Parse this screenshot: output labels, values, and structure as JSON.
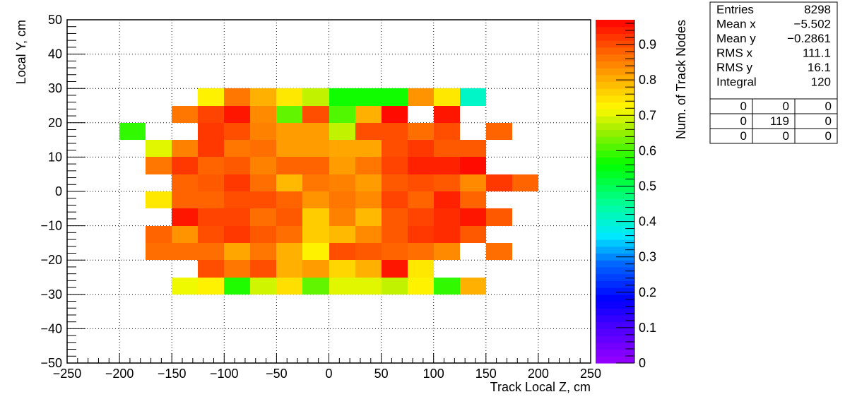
{
  "chart_data": {
    "type": "heatmap",
    "xlabel": "Track Local Z, cm",
    "ylabel": "Local Y, cm",
    "zlabel": "Num. of Track Nodes",
    "xlim": [
      -250,
      250
    ],
    "ylim": [
      -50,
      50
    ],
    "zlim": [
      0,
      0.97
    ],
    "x_ticks": [
      "−250",
      "−200",
      "−150",
      "−100",
      "−50",
      "0",
      "50",
      "100",
      "150",
      "200",
      "250"
    ],
    "y_ticks": [
      "−50",
      "−40",
      "−30",
      "−20",
      "−10",
      "0",
      "10",
      "20",
      "30",
      "40",
      "50"
    ],
    "z_ticks": [
      "0",
      "0.1",
      "0.2",
      "0.3",
      "0.4",
      "0.5",
      "0.6",
      "0.7",
      "0.8",
      "0.9"
    ],
    "grid": true,
    "bin_width_x": 25,
    "bin_height_y": 5,
    "x_bin_starts": [
      -200,
      -175,
      -150,
      -125,
      -100,
      -75,
      -50,
      -25,
      0,
      25,
      50,
      75,
      100,
      125,
      150,
      175
    ],
    "y_bin_tops": [
      30,
      25,
      20,
      15,
      10,
      5,
      0,
      -5,
      -10,
      -15,
      -20,
      -25
    ],
    "z": [
      [
        null,
        null,
        null,
        0.73,
        0.86,
        0.8,
        0.74,
        0.68,
        0.57,
        0.57,
        0.57,
        0.83,
        0.74,
        0.41,
        null,
        null
      ],
      [
        null,
        null,
        0.86,
        0.91,
        0.95,
        0.84,
        0.62,
        0.9,
        0.61,
        0.8,
        0.96,
        null,
        0.95,
        null,
        null,
        null
      ],
      [
        0.59,
        null,
        null,
        0.92,
        0.9,
        0.85,
        0.82,
        0.82,
        0.68,
        0.9,
        0.9,
        0.87,
        0.9,
        null,
        0.88,
        null
      ],
      [
        null,
        0.7,
        0.85,
        0.92,
        0.86,
        0.87,
        0.82,
        0.82,
        0.81,
        0.81,
        0.9,
        0.92,
        0.89,
        0.89,
        null,
        null
      ],
      [
        null,
        0.86,
        0.92,
        0.88,
        0.89,
        0.85,
        0.88,
        0.88,
        0.82,
        0.86,
        0.91,
        0.94,
        0.94,
        0.96,
        null,
        null
      ],
      [
        null,
        null,
        0.88,
        0.89,
        0.92,
        0.87,
        0.79,
        0.86,
        0.85,
        0.82,
        0.89,
        0.9,
        0.89,
        0.84,
        0.92,
        0.88
      ],
      [
        null,
        0.74,
        0.88,
        0.88,
        0.9,
        0.9,
        0.88,
        0.83,
        0.86,
        0.84,
        0.91,
        0.88,
        0.94,
        0.88,
        null,
        null
      ],
      [
        null,
        null,
        0.95,
        0.91,
        0.91,
        0.87,
        0.89,
        0.77,
        0.85,
        0.79,
        0.89,
        0.91,
        0.93,
        0.95,
        0.89,
        null
      ],
      [
        null,
        0.88,
        0.83,
        0.9,
        0.92,
        0.89,
        0.87,
        0.77,
        0.79,
        0.84,
        0.89,
        0.92,
        0.93,
        0.89,
        null,
        null
      ],
      [
        null,
        0.87,
        0.87,
        0.87,
        0.81,
        0.86,
        0.8,
        0.73,
        0.9,
        0.89,
        0.88,
        0.87,
        0.84,
        null,
        0.87,
        null
      ],
      [
        null,
        null,
        null,
        0.9,
        0.86,
        0.9,
        0.8,
        0.82,
        0.76,
        0.8,
        0.95,
        0.74,
        null,
        null,
        null,
        null
      ],
      [
        null,
        null,
        0.71,
        0.73,
        0.58,
        0.69,
        0.75,
        0.62,
        0.7,
        0.7,
        0.68,
        0.73,
        0.59,
        0.8,
        null,
        null
      ]
    ],
    "colorscale": [
      [
        0.0,
        "#9900ff"
      ],
      [
        0.1,
        "#4b00ff"
      ],
      [
        0.18,
        "#0000ff"
      ],
      [
        0.28,
        "#0066ff"
      ],
      [
        0.36,
        "#00eaff"
      ],
      [
        0.45,
        "#00ff99"
      ],
      [
        0.56,
        "#00ff00"
      ],
      [
        0.66,
        "#a2ee00"
      ],
      [
        0.72,
        "#fffb00"
      ],
      [
        0.8,
        "#ffb000"
      ],
      [
        0.88,
        "#ff6400"
      ],
      [
        0.97,
        "#ff0000"
      ]
    ]
  },
  "stats": {
    "rows": [
      {
        "label": "Entries",
        "value": "8298"
      },
      {
        "label": "Mean x",
        "value": "−5.502"
      },
      {
        "label": "Mean y",
        "value": "−0.2861"
      },
      {
        "label": "RMS x",
        "value": "111.1"
      },
      {
        "label": "RMS y",
        "value": "16.1"
      },
      {
        "label": "Integral",
        "value": "120"
      }
    ],
    "grid": [
      [
        "0",
        "0",
        "0"
      ],
      [
        "0",
        "119",
        "0"
      ],
      [
        "0",
        "0",
        "0"
      ]
    ]
  }
}
